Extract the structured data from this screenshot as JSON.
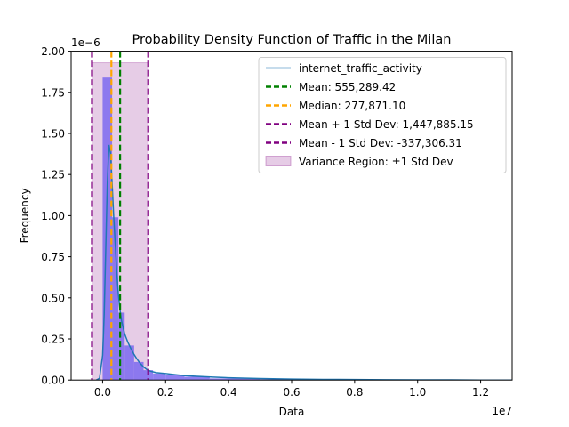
{
  "chart_data": {
    "type": "histogram",
    "title": "Probability Density Function of Traffic in the Milan",
    "xlabel": "Data",
    "ylabel": "Frequency",
    "x_offset_label": "1e7",
    "y_offset_label": "1e−6",
    "xlim": [
      -1000000,
      13000000
    ],
    "ylim": [
      0,
      2e-06
    ],
    "x_ticks": [
      {
        "value": 0,
        "label": "0.0"
      },
      {
        "value": 2000000,
        "label": "0.2"
      },
      {
        "value": 4000000,
        "label": "0.4"
      },
      {
        "value": 6000000,
        "label": "0.6"
      },
      {
        "value": 8000000,
        "label": "0.8"
      },
      {
        "value": 10000000,
        "label": "1.0"
      },
      {
        "value": 12000000,
        "label": "1.2"
      }
    ],
    "y_ticks": [
      {
        "value": 0,
        "label": "0.00"
      },
      {
        "value": 2.5e-07,
        "label": "0.25"
      },
      {
        "value": 5e-07,
        "label": "0.50"
      },
      {
        "value": 7.5e-07,
        "label": "0.75"
      },
      {
        "value": 1e-06,
        "label": "1.00"
      },
      {
        "value": 1.25e-06,
        "label": "1.25"
      },
      {
        "value": 1.5e-06,
        "label": "1.50"
      },
      {
        "value": 1.75e-06,
        "label": "1.75"
      },
      {
        "value": 2e-06,
        "label": "2.00"
      }
    ],
    "histogram": {
      "color": "#7b68ee",
      "bins": [
        {
          "x0": 0,
          "x1": 300000,
          "y": 1.84e-06
        },
        {
          "x0": 300000,
          "x1": 500000,
          "y": 9.9e-07
        },
        {
          "x0": 500000,
          "x1": 700000,
          "y": 4.1e-07
        },
        {
          "x0": 700000,
          "x1": 1000000,
          "y": 2.1e-07
        },
        {
          "x0": 1000000,
          "x1": 1300000,
          "y": 1.1e-07
        },
        {
          "x0": 1300000,
          "x1": 1600000,
          "y": 6e-08
        },
        {
          "x0": 1600000,
          "x1": 2000000,
          "y": 4e-08
        },
        {
          "x0": 2000000,
          "x1": 2600000,
          "y": 3e-08
        },
        {
          "x0": 2600000,
          "x1": 3400000,
          "y": 2e-08
        },
        {
          "x0": 3400000,
          "x1": 5000000,
          "y": 1e-08
        },
        {
          "x0": 5000000,
          "x1": 7000000,
          "y": 5e-09
        },
        {
          "x0": 7000000,
          "x1": 10000000,
          "y": 2e-09
        }
      ]
    },
    "kde": {
      "name": "internet_traffic_activity",
      "color": "#1f77b4",
      "x": [
        -200000,
        -100000,
        0,
        50000,
        100000,
        150000,
        200000,
        250000,
        300000,
        350000,
        400000,
        450000,
        500000,
        550000,
        600000,
        700000,
        800000,
        900000,
        1000000,
        1100000,
        1200000,
        1300000,
        1400000,
        1500000,
        1700000,
        2000000,
        2300000,
        2600000,
        3000000,
        3500000,
        4000000,
        5000000,
        6000000,
        7000000,
        8000000,
        9000000,
        10000000,
        11000000,
        12000000,
        13000000
      ],
      "y": [
        0,
        1e-08,
        1.5e-07,
        4e-07,
        8e-07,
        1.2e-06,
        1.43e-06,
        1.38e-06,
        1.2e-06,
        1e-06,
        8.3e-07,
        6.5e-07,
        5.2e-07,
        4.3e-07,
        3.6e-07,
        2.8e-07,
        2.3e-07,
        1.9e-07,
        1.55e-07,
        1.25e-07,
        1e-07,
        8e-08,
        6.5e-08,
        5.5e-08,
        4.5e-08,
        4e-08,
        3.3e-08,
        2.7e-08,
        2.3e-08,
        1.8e-08,
        1.4e-08,
        9e-09,
        6e-09,
        4e-09,
        3e-09,
        2e-09,
        1e-09,
        1e-09,
        0,
        0
      ]
    },
    "vertical_lines": [
      {
        "name": "Mean: 555,289.42",
        "x": 555289.42,
        "color": "#008000"
      },
      {
        "name": "Median: 277,871.10",
        "x": 277871.1,
        "color": "#ffa500"
      },
      {
        "name": "Mean + 1 Std Dev: 1,447,885.15",
        "x": 1447885.15,
        "color": "#800080"
      },
      {
        "name": "Mean - 1 Std Dev: -337,306.31",
        "x": -337306.31,
        "color": "#800080"
      }
    ],
    "variance_region": {
      "name": "Variance Region: ±1 Std Dev",
      "x0": -337306.31,
      "x1": 1447885.15,
      "y_top": 1.93e-06,
      "color": "#800080"
    },
    "legend_placement": "top-right",
    "grid": false
  }
}
